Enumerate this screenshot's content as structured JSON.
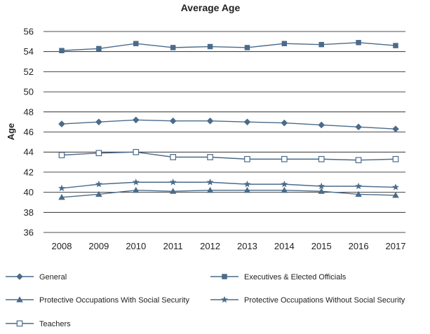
{
  "chart_data": {
    "type": "line",
    "title": "Average Age",
    "xlabel": "",
    "ylabel": "Age",
    "x": [
      "2008",
      "2009",
      "2010",
      "2011",
      "2012",
      "2013",
      "2014",
      "2015",
      "2016",
      "2017"
    ],
    "ylim": [
      36,
      56
    ],
    "yticks": [
      36,
      38,
      40,
      42,
      44,
      46,
      48,
      50,
      52,
      54,
      56
    ],
    "grid": true,
    "legend_position": "bottom",
    "line_color": "#4a6b8a",
    "series": [
      {
        "name": "General",
        "marker": "diamond",
        "values": [
          46.8,
          47.0,
          47.2,
          47.1,
          47.1,
          47.0,
          46.9,
          46.7,
          46.5,
          46.3
        ]
      },
      {
        "name": "Executives & Elected Officials",
        "marker": "square",
        "values": [
          54.1,
          54.3,
          54.8,
          54.4,
          54.5,
          54.4,
          54.8,
          54.7,
          54.9,
          54.6
        ]
      },
      {
        "name": "Protective Occupations With Social Security",
        "marker": "triangle",
        "values": [
          39.5,
          39.8,
          40.2,
          40.1,
          40.2,
          40.2,
          40.2,
          40.1,
          39.8,
          39.7
        ]
      },
      {
        "name": "Protective Occupations Without Social Security",
        "marker": "star",
        "values": [
          40.4,
          40.8,
          41.0,
          41.0,
          41.0,
          40.8,
          40.8,
          40.6,
          40.6,
          40.5
        ]
      },
      {
        "name": "Teachers",
        "marker": "open-square",
        "values": [
          43.7,
          43.9,
          44.0,
          43.5,
          43.5,
          43.3,
          43.3,
          43.3,
          43.2,
          43.3
        ]
      }
    ]
  }
}
